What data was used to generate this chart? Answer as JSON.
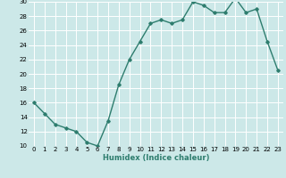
{
  "x": [
    0,
    1,
    2,
    3,
    4,
    5,
    6,
    7,
    8,
    9,
    10,
    11,
    12,
    13,
    14,
    15,
    16,
    17,
    18,
    19,
    20,
    21,
    22,
    23
  ],
  "y": [
    16,
    14.5,
    13,
    12.5,
    12,
    10.5,
    10,
    13.5,
    18.5,
    22,
    24.5,
    27,
    27.5,
    27,
    27.5,
    30,
    29.5,
    28.5,
    28.5,
    30.5,
    28.5,
    29,
    24.5,
    20.5
  ],
  "xlabel": "Humidex (Indice chaleur)",
  "ylim": [
    10,
    30
  ],
  "xlim_min": -0.5,
  "xlim_max": 23.5,
  "yticks": [
    10,
    12,
    14,
    16,
    18,
    20,
    22,
    24,
    26,
    28,
    30
  ],
  "xticks": [
    0,
    1,
    2,
    3,
    4,
    5,
    6,
    7,
    8,
    9,
    10,
    11,
    12,
    13,
    14,
    15,
    16,
    17,
    18,
    19,
    20,
    21,
    22,
    23
  ],
  "line_color": "#2e7d6e",
  "marker": "D",
  "marker_size": 1.8,
  "line_width": 1.0,
  "bg_color": "#cce8e8",
  "grid_color": "#ffffff",
  "xlabel_color": "#2e7d6e",
  "xlabel_fontsize": 6.0,
  "tick_fontsize": 5.0
}
